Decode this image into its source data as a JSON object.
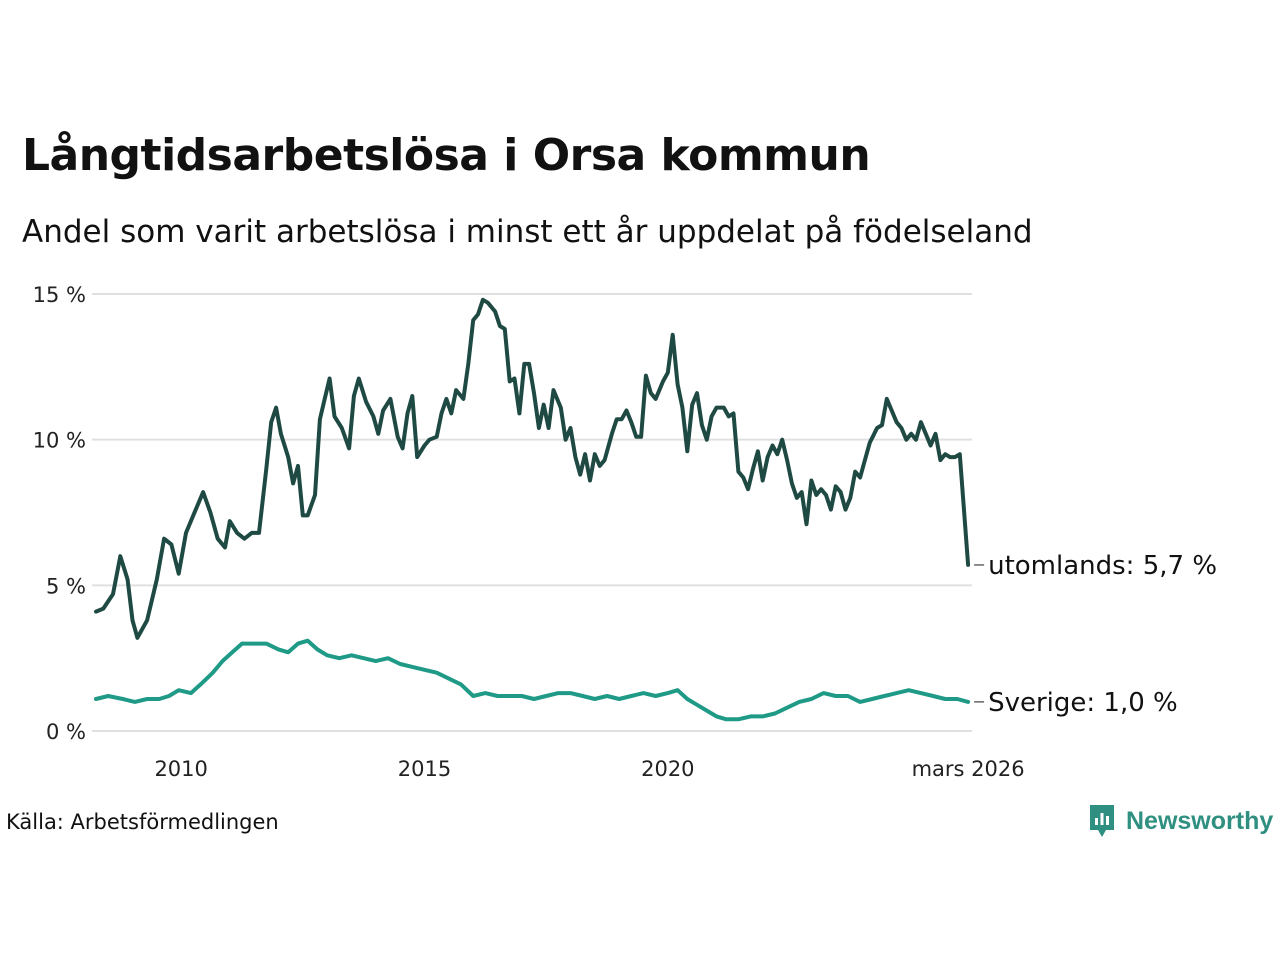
{
  "chart_data": {
    "type": "line",
    "title": "Långtidsarbetslösa i Orsa kommun",
    "subtitle": "Andel som varit arbetslösa i minst ett år uppdelat på födelseland",
    "xlabel": "",
    "ylabel": "",
    "xlim": [
      2008.25,
      2026.25
    ],
    "ylim": [
      0,
      15
    ],
    "yticks": [
      0,
      5,
      10,
      15
    ],
    "ytick_labels": [
      "0 %",
      "5 %",
      "10 %",
      "15 %"
    ],
    "xticks": [
      2010,
      2015,
      2020,
      2026.17
    ],
    "xtick_labels": [
      "2010",
      "2015",
      "2020",
      "mars 2026"
    ],
    "grid": "horizontal",
    "series": [
      {
        "name": "utomlands",
        "end_label": "utomlands: 5,7 %",
        "color": "#1f4a44",
        "points": [
          [
            2008.25,
            4.1
          ],
          [
            2008.4,
            4.2
          ],
          [
            2008.6,
            4.7
          ],
          [
            2008.75,
            6.0
          ],
          [
            2008.9,
            5.2
          ],
          [
            2009.0,
            3.8
          ],
          [
            2009.1,
            3.2
          ],
          [
            2009.3,
            3.8
          ],
          [
            2009.5,
            5.2
          ],
          [
            2009.65,
            6.6
          ],
          [
            2009.8,
            6.4
          ],
          [
            2009.95,
            5.4
          ],
          [
            2010.1,
            6.8
          ],
          [
            2010.25,
            7.4
          ],
          [
            2010.45,
            8.2
          ],
          [
            2010.6,
            7.5
          ],
          [
            2010.75,
            6.6
          ],
          [
            2010.9,
            6.3
          ],
          [
            2011.0,
            7.2
          ],
          [
            2011.15,
            6.8
          ],
          [
            2011.3,
            6.6
          ],
          [
            2011.45,
            6.8
          ],
          [
            2011.6,
            6.8
          ],
          [
            2011.75,
            9.0
          ],
          [
            2011.85,
            10.6
          ],
          [
            2011.95,
            11.1
          ],
          [
            2012.05,
            10.2
          ],
          [
            2012.2,
            9.4
          ],
          [
            2012.3,
            8.5
          ],
          [
            2012.4,
            9.1
          ],
          [
            2012.5,
            7.4
          ],
          [
            2012.6,
            7.4
          ],
          [
            2012.75,
            8.1
          ],
          [
            2012.85,
            10.7
          ],
          [
            2012.95,
            11.4
          ],
          [
            2013.05,
            12.1
          ],
          [
            2013.15,
            10.8
          ],
          [
            2013.3,
            10.4
          ],
          [
            2013.45,
            9.7
          ],
          [
            2013.55,
            11.5
          ],
          [
            2013.65,
            12.1
          ],
          [
            2013.8,
            11.3
          ],
          [
            2013.95,
            10.8
          ],
          [
            2014.05,
            10.2
          ],
          [
            2014.15,
            11.0
          ],
          [
            2014.3,
            11.4
          ],
          [
            2014.45,
            10.1
          ],
          [
            2014.55,
            9.7
          ],
          [
            2014.65,
            10.9
          ],
          [
            2014.75,
            11.5
          ],
          [
            2014.85,
            9.4
          ],
          [
            2015.0,
            9.8
          ],
          [
            2015.1,
            10.0
          ],
          [
            2015.25,
            10.1
          ],
          [
            2015.35,
            10.9
          ],
          [
            2015.45,
            11.4
          ],
          [
            2015.55,
            10.9
          ],
          [
            2015.65,
            11.7
          ],
          [
            2015.8,
            11.4
          ],
          [
            2015.9,
            12.6
          ],
          [
            2016.0,
            14.1
          ],
          [
            2016.1,
            14.3
          ],
          [
            2016.2,
            14.8
          ],
          [
            2016.3,
            14.7
          ],
          [
            2016.45,
            14.4
          ],
          [
            2016.55,
            13.9
          ],
          [
            2016.65,
            13.8
          ],
          [
            2016.75,
            12.0
          ],
          [
            2016.85,
            12.1
          ],
          [
            2016.95,
            10.9
          ],
          [
            2017.05,
            12.6
          ],
          [
            2017.15,
            12.6
          ],
          [
            2017.25,
            11.6
          ],
          [
            2017.35,
            10.4
          ],
          [
            2017.45,
            11.2
          ],
          [
            2017.55,
            10.4
          ],
          [
            2017.65,
            11.7
          ],
          [
            2017.8,
            11.1
          ],
          [
            2017.9,
            10.0
          ],
          [
            2018.0,
            10.4
          ],
          [
            2018.1,
            9.4
          ],
          [
            2018.2,
            8.8
          ],
          [
            2018.3,
            9.5
          ],
          [
            2018.4,
            8.6
          ],
          [
            2018.5,
            9.5
          ],
          [
            2018.6,
            9.1
          ],
          [
            2018.7,
            9.3
          ],
          [
            2018.85,
            10.2
          ],
          [
            2018.95,
            10.7
          ],
          [
            2019.05,
            10.7
          ],
          [
            2019.15,
            11.0
          ],
          [
            2019.25,
            10.6
          ],
          [
            2019.35,
            10.1
          ],
          [
            2019.45,
            10.1
          ],
          [
            2019.55,
            12.2
          ],
          [
            2019.65,
            11.6
          ],
          [
            2019.75,
            11.4
          ],
          [
            2019.9,
            12.0
          ],
          [
            2020.0,
            12.3
          ],
          [
            2020.1,
            13.6
          ],
          [
            2020.2,
            11.9
          ],
          [
            2020.3,
            11.1
          ],
          [
            2020.4,
            9.6
          ],
          [
            2020.5,
            11.2
          ],
          [
            2020.6,
            11.6
          ],
          [
            2020.7,
            10.5
          ],
          [
            2020.8,
            10.0
          ],
          [
            2020.9,
            10.8
          ],
          [
            2021.0,
            11.1
          ],
          [
            2021.15,
            11.1
          ],
          [
            2021.25,
            10.8
          ],
          [
            2021.35,
            10.9
          ],
          [
            2021.45,
            8.9
          ],
          [
            2021.55,
            8.7
          ],
          [
            2021.65,
            8.3
          ],
          [
            2021.75,
            9.0
          ],
          [
            2021.85,
            9.6
          ],
          [
            2021.95,
            8.6
          ],
          [
            2022.05,
            9.4
          ],
          [
            2022.15,
            9.8
          ],
          [
            2022.25,
            9.5
          ],
          [
            2022.35,
            10.0
          ],
          [
            2022.45,
            9.3
          ],
          [
            2022.55,
            8.5
          ],
          [
            2022.65,
            8.0
          ],
          [
            2022.75,
            8.2
          ],
          [
            2022.85,
            7.1
          ],
          [
            2022.95,
            8.6
          ],
          [
            2023.05,
            8.1
          ],
          [
            2023.15,
            8.3
          ],
          [
            2023.25,
            8.1
          ],
          [
            2023.35,
            7.6
          ],
          [
            2023.45,
            8.4
          ],
          [
            2023.55,
            8.2
          ],
          [
            2023.65,
            7.6
          ],
          [
            2023.75,
            8.0
          ],
          [
            2023.85,
            8.9
          ],
          [
            2023.95,
            8.7
          ],
          [
            2024.05,
            9.3
          ],
          [
            2024.15,
            9.9
          ],
          [
            2024.3,
            10.4
          ],
          [
            2024.4,
            10.5
          ],
          [
            2024.5,
            11.4
          ],
          [
            2024.6,
            11.0
          ],
          [
            2024.7,
            10.6
          ],
          [
            2024.8,
            10.4
          ],
          [
            2024.9,
            10.0
          ],
          [
            2025.0,
            10.2
          ],
          [
            2025.1,
            10.0
          ],
          [
            2025.2,
            10.6
          ],
          [
            2025.3,
            10.2
          ],
          [
            2025.4,
            9.8
          ],
          [
            2025.5,
            10.2
          ],
          [
            2025.6,
            9.3
          ],
          [
            2025.7,
            9.5
          ],
          [
            2025.8,
            9.4
          ],
          [
            2025.9,
            9.4
          ],
          [
            2026.0,
            9.5
          ],
          [
            2026.17,
            5.7
          ]
        ]
      },
      {
        "name": "Sverige",
        "end_label": "Sverige: 1,0 %",
        "color": "#1f9a86",
        "points": [
          [
            2008.25,
            1.1
          ],
          [
            2008.5,
            1.2
          ],
          [
            2008.8,
            1.1
          ],
          [
            2009.05,
            1.0
          ],
          [
            2009.3,
            1.1
          ],
          [
            2009.55,
            1.1
          ],
          [
            2009.75,
            1.2
          ],
          [
            2009.95,
            1.4
          ],
          [
            2010.2,
            1.3
          ],
          [
            2010.4,
            1.6
          ],
          [
            2010.65,
            2.0
          ],
          [
            2010.85,
            2.4
          ],
          [
            2011.05,
            2.7
          ],
          [
            2011.25,
            3.0
          ],
          [
            2011.5,
            3.0
          ],
          [
            2011.75,
            3.0
          ],
          [
            2012.0,
            2.8
          ],
          [
            2012.2,
            2.7
          ],
          [
            2012.4,
            3.0
          ],
          [
            2012.6,
            3.1
          ],
          [
            2012.8,
            2.8
          ],
          [
            2013.0,
            2.6
          ],
          [
            2013.25,
            2.5
          ],
          [
            2013.5,
            2.6
          ],
          [
            2013.75,
            2.5
          ],
          [
            2014.0,
            2.4
          ],
          [
            2014.25,
            2.5
          ],
          [
            2014.5,
            2.3
          ],
          [
            2014.75,
            2.2
          ],
          [
            2015.0,
            2.1
          ],
          [
            2015.25,
            2.0
          ],
          [
            2015.5,
            1.8
          ],
          [
            2015.75,
            1.6
          ],
          [
            2016.0,
            1.2
          ],
          [
            2016.25,
            1.3
          ],
          [
            2016.5,
            1.2
          ],
          [
            2016.75,
            1.2
          ],
          [
            2017.0,
            1.2
          ],
          [
            2017.25,
            1.1
          ],
          [
            2017.5,
            1.2
          ],
          [
            2017.75,
            1.3
          ],
          [
            2018.0,
            1.3
          ],
          [
            2018.25,
            1.2
          ],
          [
            2018.5,
            1.1
          ],
          [
            2018.75,
            1.2
          ],
          [
            2019.0,
            1.1
          ],
          [
            2019.25,
            1.2
          ],
          [
            2019.5,
            1.3
          ],
          [
            2019.75,
            1.2
          ],
          [
            2020.0,
            1.3
          ],
          [
            2020.2,
            1.4
          ],
          [
            2020.4,
            1.1
          ],
          [
            2020.6,
            0.9
          ],
          [
            2020.8,
            0.7
          ],
          [
            2021.0,
            0.5
          ],
          [
            2021.2,
            0.4
          ],
          [
            2021.45,
            0.4
          ],
          [
            2021.7,
            0.5
          ],
          [
            2021.95,
            0.5
          ],
          [
            2022.2,
            0.6
          ],
          [
            2022.45,
            0.8
          ],
          [
            2022.7,
            1.0
          ],
          [
            2022.95,
            1.1
          ],
          [
            2023.2,
            1.3
          ],
          [
            2023.45,
            1.2
          ],
          [
            2023.7,
            1.2
          ],
          [
            2023.95,
            1.0
          ],
          [
            2024.2,
            1.1
          ],
          [
            2024.45,
            1.2
          ],
          [
            2024.7,
            1.3
          ],
          [
            2024.95,
            1.4
          ],
          [
            2025.2,
            1.3
          ],
          [
            2025.45,
            1.2
          ],
          [
            2025.7,
            1.1
          ],
          [
            2025.95,
            1.1
          ],
          [
            2026.17,
            1.0
          ]
        ]
      }
    ]
  },
  "source": "Källa: Arbetsförmedlingen",
  "brand": {
    "name": "Newsworthy",
    "color": "#2f8f80"
  }
}
